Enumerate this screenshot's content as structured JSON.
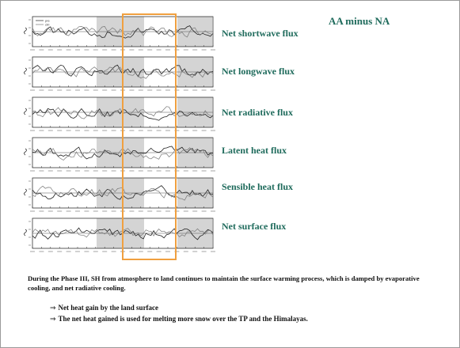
{
  "slide": {
    "title": "AA minus NA"
  },
  "legend": [
    "pre",
    "ctrl"
  ],
  "panels": [
    {
      "label": "Net shortwave flux"
    },
    {
      "label": "Net longwave flux"
    },
    {
      "label": "Net radiative flux"
    },
    {
      "label": "Latent heat flux"
    },
    {
      "label": "Sensible heat flux"
    },
    {
      "label": "Net surface flux"
    }
  ],
  "summary_text": "During the Phase III, SH from atmosphere to land continues to maintain the surface warming process, which is damped by evaporative cooling, and net radiative cooling.",
  "bullets": [
    "Net heat gain by the land surface",
    "The net heat gained is used for melting more snow over the TP and the Himalayas."
  ],
  "colors": {
    "title_color": "#1f6b5c",
    "highlight_border": "#f0a040",
    "shading": "#d4d4d4"
  }
}
